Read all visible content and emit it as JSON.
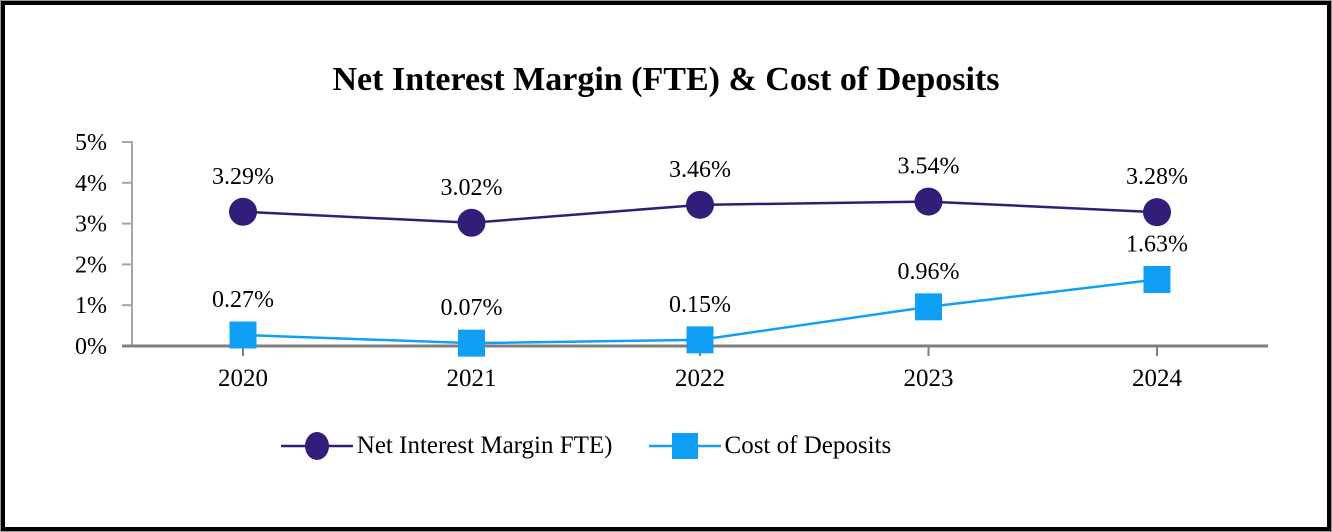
{
  "title": "Net Interest Margin (FTE) & Cost of Deposits",
  "chart_data": {
    "type": "line",
    "categories": [
      "2020",
      "2021",
      "2022",
      "2023",
      "2024"
    ],
    "series": [
      {
        "name": "Net Interest Margin FTE)",
        "marker": "circle",
        "color": "#321E78",
        "values": [
          3.29,
          3.02,
          3.46,
          3.54,
          3.28
        ],
        "data_labels": [
          "3.29%",
          "3.02%",
          "3.46%",
          "3.54%",
          "3.28%"
        ]
      },
      {
        "name": "Cost of Deposits",
        "marker": "square",
        "color": "#0FA0F5",
        "values": [
          0.27,
          0.07,
          0.15,
          0.96,
          1.63
        ],
        "data_labels": [
          "0.27%",
          "0.07%",
          "0.15%",
          "0.96%",
          "1.63%"
        ]
      }
    ],
    "yticks": {
      "labels": [
        "5%",
        "4%",
        "3%",
        "2%",
        "1%",
        "0%"
      ],
      "values": [
        5,
        4,
        3,
        2,
        1,
        0
      ]
    },
    "ylim": [
      0,
      5
    ],
    "grid": false,
    "legend_position": "bottom",
    "axis_colors": {
      "y_axis": "#A6A6A6",
      "x_axis": "#7F7F7F"
    }
  }
}
